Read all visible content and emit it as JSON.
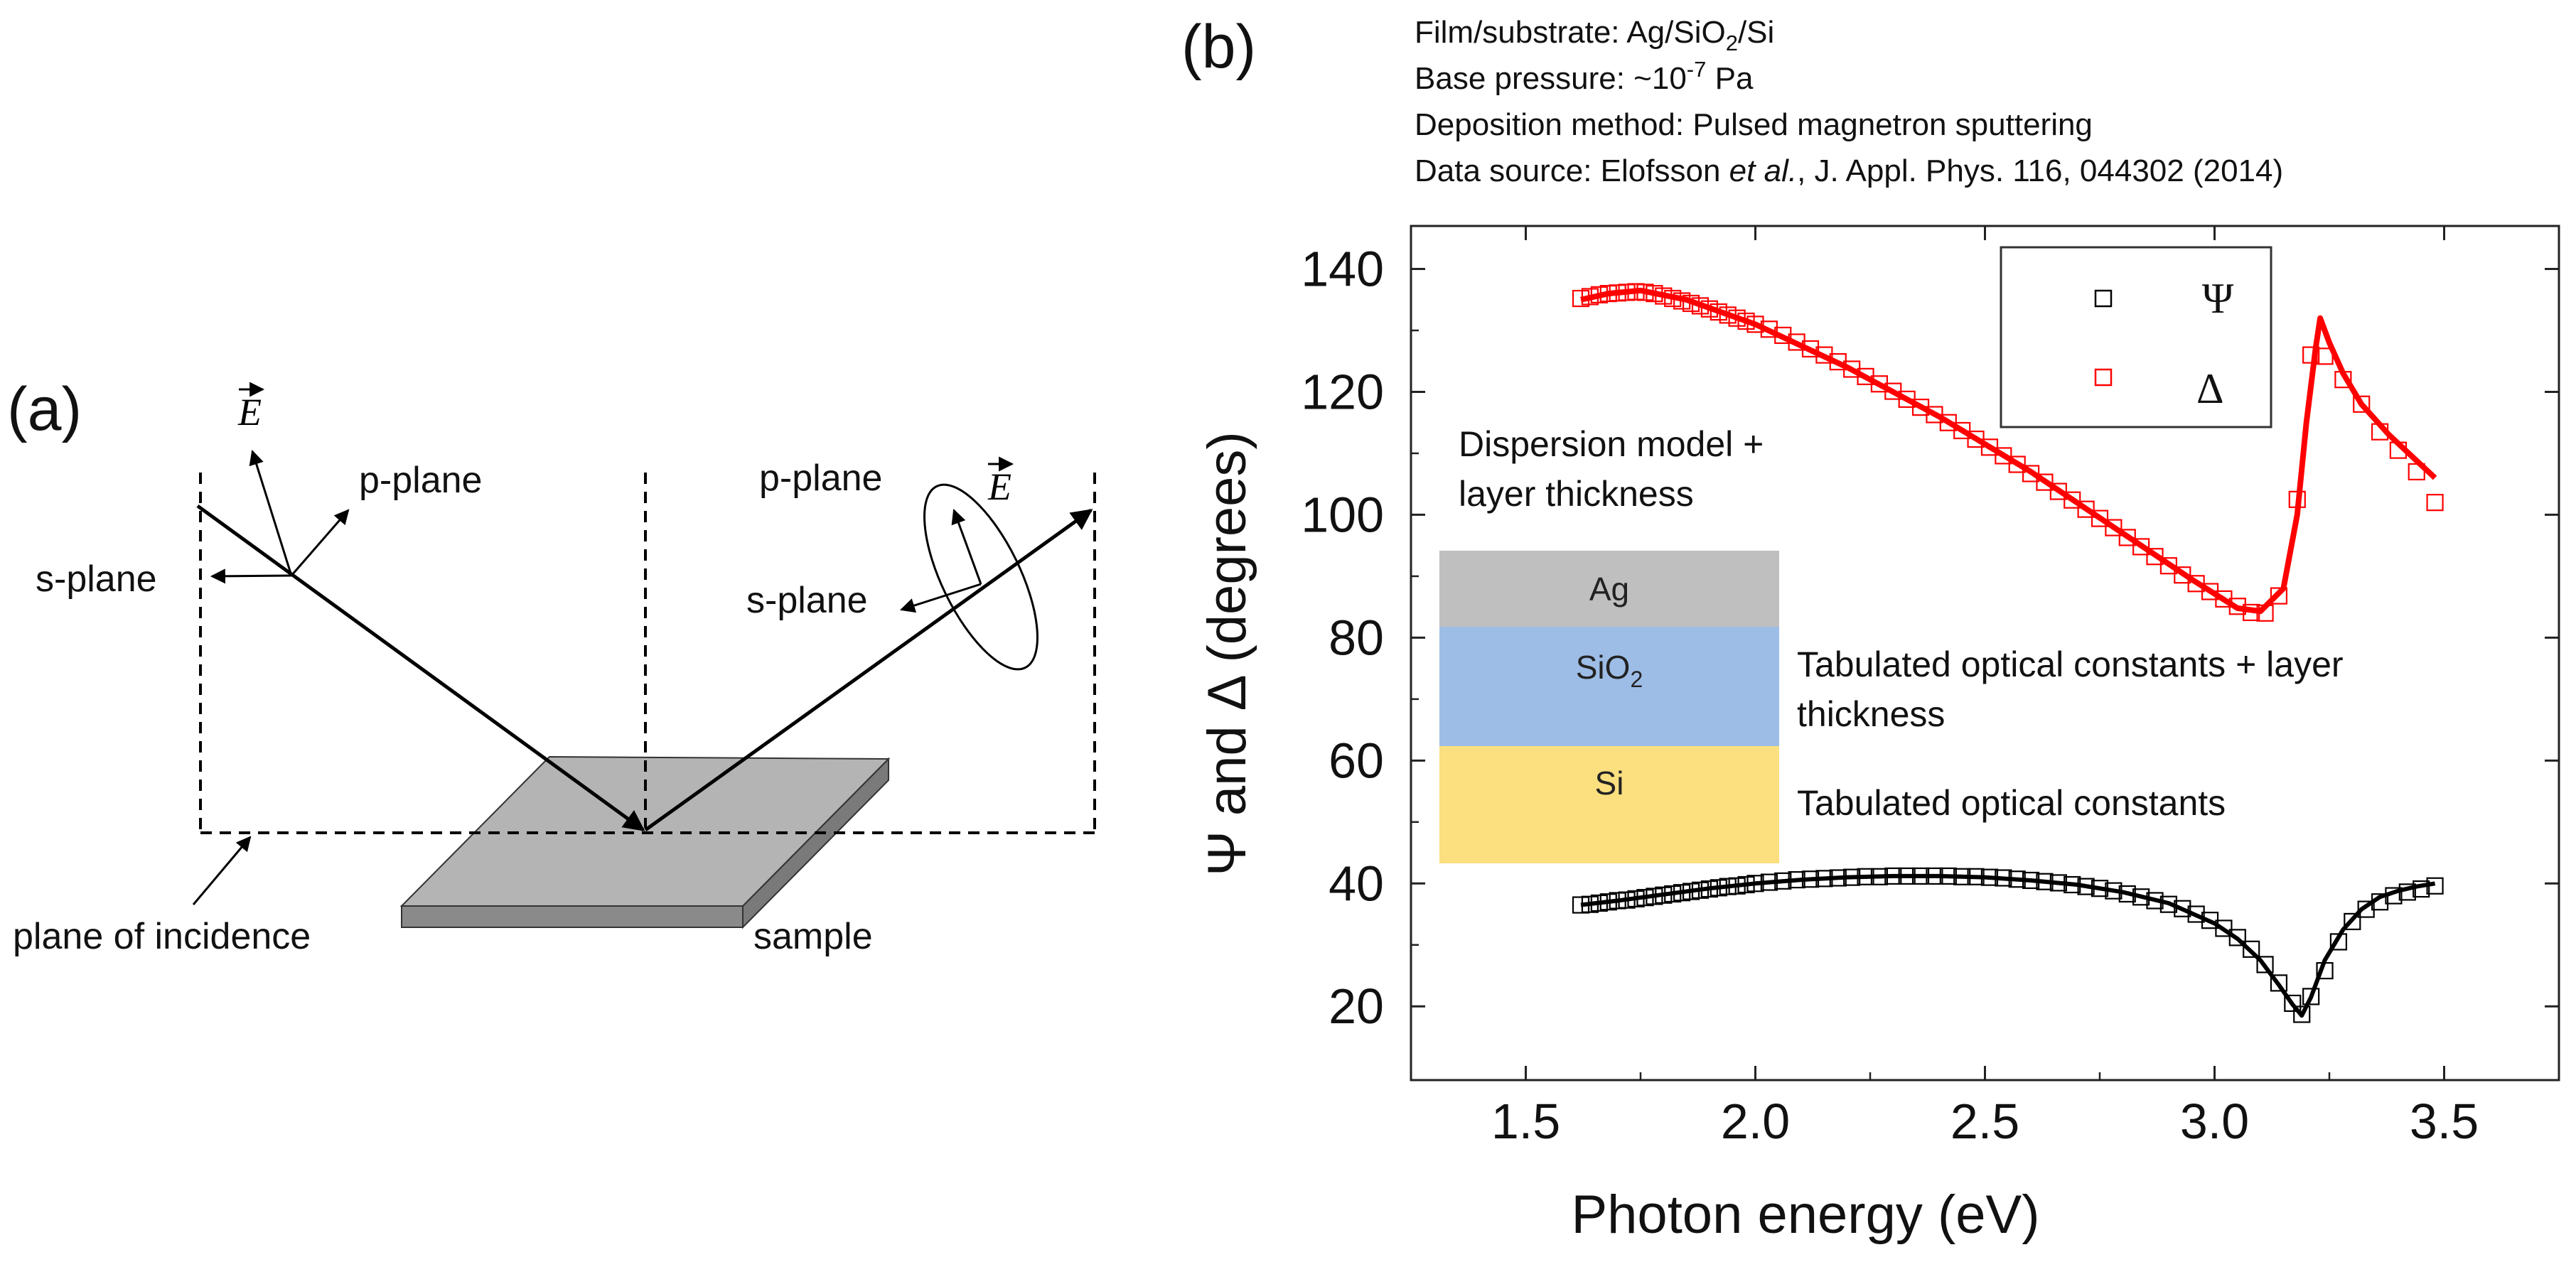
{
  "panel_a": {
    "label": "(a)",
    "e_field_incident": "E",
    "e_field_reflected": "E",
    "p_plane_left": "p-plane",
    "s_plane_left": "s-plane",
    "p_plane_right": "p-plane",
    "s_plane_right": "s-plane",
    "plane_of_incidence": "plane of incidence",
    "sample": "sample"
  },
  "panel_b": {
    "label": "(b)",
    "info": {
      "line1_prefix": "Film/substrate: Ag/SiO",
      "line1_sub": "2",
      "line1_suffix": "/Si",
      "line2_prefix": "Base pressure: ~10",
      "line2_sup": "-7",
      "line2_suffix": " Pa",
      "line3": "Deposition method: Pulsed magnetron sputtering",
      "line4_prefix": "Data source: Elofsson ",
      "line4_italic": "et al.",
      "line4_suffix": ", J. Appl. Phys. 116, 044302 (2014)"
    },
    "stack": {
      "ag": "Ag",
      "sio2_prefix": "SiO",
      "sio2_sub": "2",
      "si": "Si",
      "ag_color": "#bfbfbf",
      "sio2_color": "#9dbde6",
      "si_color": "#fcdf7f"
    },
    "annotations": {
      "ag_line1": "Dispersion model +",
      "ag_line2": "layer thickness",
      "sio2_line1": "Tabulated optical constants + layer",
      "sio2_line2": "thickness",
      "si_line1": "Tabulated optical constants"
    }
  },
  "chart_data": {
    "type": "scatter",
    "xlabel": "Photon energy (eV)",
    "ylabel": "Ψ and Δ (degrees)",
    "xlim": [
      1.25,
      3.75
    ],
    "ylim": [
      8,
      147
    ],
    "xticks": [
      1.5,
      2.0,
      2.5,
      3.0,
      3.5
    ],
    "xtick_labels": [
      "1.5",
      "2.0",
      "2.5",
      "3.0",
      "3.5"
    ],
    "yticks": [
      20,
      40,
      60,
      80,
      100,
      120,
      140
    ],
    "ytick_labels": [
      "20",
      "40",
      "60",
      "80",
      "100",
      "120",
      "140"
    ],
    "legend": {
      "position": "top-right",
      "psi": "Ψ",
      "delta": "Δ"
    },
    "series": [
      {
        "name": "Ψ",
        "color": "#000000",
        "fit_x": [
          1.62,
          1.7,
          1.8,
          1.9,
          2.0,
          2.1,
          2.2,
          2.3,
          2.4,
          2.5,
          2.6,
          2.7,
          2.8,
          2.9,
          3.0,
          3.05,
          3.1,
          3.14,
          3.17,
          3.19,
          3.21,
          3.24,
          3.28,
          3.32,
          3.36,
          3.4,
          3.44,
          3.48
        ],
        "fit_y": [
          36.5,
          37.2,
          38.2,
          39.2,
          40.0,
          40.6,
          41.0,
          41.2,
          41.2,
          41.0,
          40.5,
          39.8,
          38.6,
          36.8,
          33.5,
          31.0,
          27.5,
          23.5,
          20.3,
          18.5,
          21.5,
          27.5,
          32.5,
          35.8,
          37.8,
          38.8,
          39.5,
          40.0
        ],
        "points_x": [
          1.62,
          1.64,
          1.66,
          1.68,
          1.7,
          1.72,
          1.74,
          1.76,
          1.78,
          1.8,
          1.82,
          1.84,
          1.86,
          1.88,
          1.9,
          1.92,
          1.94,
          1.96,
          1.98,
          2.0,
          2.03,
          2.06,
          2.09,
          2.12,
          2.15,
          2.18,
          2.21,
          2.24,
          2.27,
          2.3,
          2.33,
          2.36,
          2.39,
          2.42,
          2.45,
          2.48,
          2.51,
          2.54,
          2.57,
          2.6,
          2.63,
          2.66,
          2.69,
          2.72,
          2.75,
          2.78,
          2.81,
          2.84,
          2.87,
          2.9,
          2.93,
          2.96,
          2.99,
          3.02,
          3.05,
          3.08,
          3.11,
          3.14,
          3.17,
          3.19,
          3.21,
          3.24,
          3.27,
          3.3,
          3.33,
          3.36,
          3.39,
          3.42,
          3.45,
          3.48
        ],
        "points_y": [
          36.5,
          36.6,
          36.8,
          37.0,
          37.2,
          37.3,
          37.5,
          37.7,
          37.9,
          38.1,
          38.3,
          38.5,
          38.7,
          38.9,
          39.1,
          39.3,
          39.5,
          39.6,
          39.8,
          40.0,
          40.2,
          40.4,
          40.6,
          40.7,
          40.8,
          40.9,
          41.0,
          41.1,
          41.1,
          41.2,
          41.2,
          41.2,
          41.2,
          41.2,
          41.1,
          41.1,
          41.0,
          40.9,
          40.7,
          40.5,
          40.3,
          40.1,
          39.8,
          39.5,
          39.2,
          38.8,
          38.3,
          37.8,
          37.2,
          36.6,
          35.9,
          35.0,
          34.0,
          32.7,
          31.2,
          29.3,
          26.8,
          23.8,
          20.5,
          18.7,
          21.6,
          25.8,
          30.5,
          33.8,
          35.8,
          37.0,
          38.0,
          38.6,
          39.1,
          39.6
        ]
      },
      {
        "name": "Δ",
        "color": "#ff0000",
        "fit_x": [
          1.62,
          1.68,
          1.75,
          1.85,
          2.0,
          2.2,
          2.4,
          2.6,
          2.8,
          2.95,
          3.05,
          3.1,
          3.15,
          3.18,
          3.2,
          3.22,
          3.23,
          3.25,
          3.28,
          3.32,
          3.38,
          3.43,
          3.48
        ],
        "fit_y": [
          135.0,
          136.0,
          136.5,
          135.0,
          131.0,
          124.0,
          116.0,
          107.0,
          97.0,
          89.5,
          84.8,
          84.3,
          88.0,
          100.0,
          115.0,
          127.0,
          132.0,
          128.0,
          123.0,
          118.0,
          113.0,
          109.5,
          106.0
        ],
        "points_x": [
          1.62,
          1.64,
          1.66,
          1.68,
          1.7,
          1.72,
          1.74,
          1.76,
          1.78,
          1.8,
          1.82,
          1.84,
          1.86,
          1.88,
          1.9,
          1.92,
          1.94,
          1.96,
          1.98,
          2.0,
          2.03,
          2.06,
          2.09,
          2.12,
          2.15,
          2.18,
          2.21,
          2.24,
          2.27,
          2.3,
          2.33,
          2.36,
          2.39,
          2.42,
          2.45,
          2.48,
          2.51,
          2.54,
          2.57,
          2.6,
          2.63,
          2.66,
          2.69,
          2.72,
          2.75,
          2.78,
          2.81,
          2.84,
          2.87,
          2.9,
          2.93,
          2.96,
          2.99,
          3.02,
          3.05,
          3.08,
          3.11,
          3.14,
          3.18,
          3.21,
          3.24,
          3.28,
          3.32,
          3.36,
          3.4,
          3.44,
          3.48
        ],
        "points_y": [
          135.2,
          135.5,
          135.8,
          136.0,
          136.1,
          136.2,
          136.3,
          136.2,
          136.0,
          135.6,
          135.2,
          134.8,
          134.4,
          134.0,
          133.5,
          133.0,
          132.5,
          132.0,
          131.5,
          131.0,
          130.2,
          129.2,
          128.1,
          127.0,
          126.0,
          124.9,
          123.7,
          122.5,
          121.3,
          120.1,
          118.8,
          117.5,
          116.3,
          115.0,
          113.7,
          112.3,
          111.0,
          109.6,
          108.2,
          106.7,
          105.3,
          103.8,
          102.4,
          100.9,
          99.4,
          97.9,
          96.3,
          94.8,
          93.2,
          91.7,
          90.2,
          88.8,
          87.5,
          86.3,
          85.1,
          84.1,
          84.0,
          86.8,
          102.5,
          126.0,
          125.8,
          122.0,
          118.0,
          113.5,
          110.5,
          107.0,
          102.0
        ]
      }
    ]
  }
}
